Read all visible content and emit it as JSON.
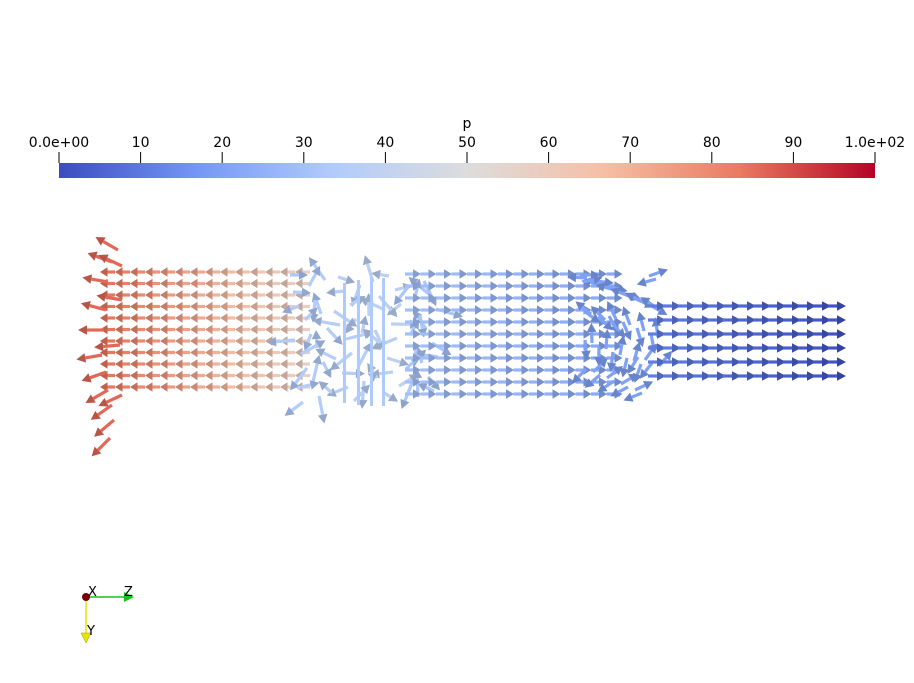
{
  "colorbar": {
    "title": "p",
    "range": [
      0,
      100
    ],
    "tick_labels": [
      "0.0e+00",
      "10",
      "20",
      "30",
      "40",
      "50",
      "60",
      "70",
      "80",
      "90",
      "1.0e+02"
    ],
    "tick_values": [
      0,
      10,
      20,
      30,
      40,
      50,
      60,
      70,
      80,
      90,
      100
    ],
    "colormap": [
      "#3b4cc0",
      "#7396f5",
      "#b0cbfc",
      "#dcdddd",
      "#f6bfa6",
      "#ea7b60",
      "#b40426"
    ]
  },
  "axes_triad": {
    "x_label": "X",
    "y_label": "Y",
    "z_label": "Z",
    "x_color": "#7a0000",
    "y_color": "#e6e600",
    "z_color": "#19c219"
  },
  "glyph_field": {
    "description_colors": {
      "high_pressure": "#c9553f",
      "mid_pressure": "#b7c0d6",
      "low_pressure": "#2c3b93"
    }
  }
}
